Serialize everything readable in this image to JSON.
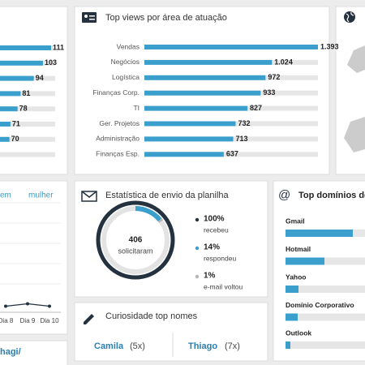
{
  "left_panel": {
    "values": [
      111,
      103,
      94,
      81,
      78,
      71,
      70
    ],
    "xlim": [
      0,
      115
    ]
  },
  "views_panel": {
    "title": "Top views por área de atuação",
    "categories": [
      "Vendas",
      "Negócios",
      "Logística",
      "Finanças Corp.",
      "TI",
      "Ger. Projetos",
      "Administração",
      "Finanças Esp."
    ],
    "values": [
      1393,
      1024,
      972,
      933,
      827,
      732,
      713,
      637
    ],
    "value_labels": [
      "1.393",
      "1.024",
      "972",
      "933",
      "827",
      "732",
      "713",
      "637"
    ],
    "xlim": [
      0,
      1393
    ]
  },
  "gender_panel": {
    "legend": [
      "em",
      "mulher"
    ],
    "categories": [
      "Dia 8",
      "Dia 9",
      "Dia 10"
    ],
    "values": [
      5,
      7,
      5
    ],
    "ylim": [
      0,
      100
    ],
    "footer": "hagi/"
  },
  "stats_panel": {
    "title": "Estatística de envio da planilha",
    "center_value": 406,
    "center_label": "solicitaram",
    "items": [
      {
        "value": 100,
        "value_label": "100%",
        "label": "recebeu",
        "color": "#24313f"
      },
      {
        "value": 14,
        "value_label": "14%",
        "label": "respondeu",
        "color": "#3a9fcc"
      },
      {
        "value": 1,
        "value_label": "1%",
        "label": "e-mail voltou",
        "color": "#b5b5b5"
      }
    ]
  },
  "names_panel": {
    "title": "Curiosidade top nomes",
    "names": [
      {
        "name": "Camila",
        "count_label": "(5x)"
      },
      {
        "name": "Thiago",
        "count_label": "(7x)"
      }
    ]
  },
  "domains_panel": {
    "title": "Top domínios de",
    "categories": [
      "Gmail",
      "Hotmail",
      "Yahoo",
      "Domínio Corporativo",
      "Outlook"
    ],
    "values": [
      83,
      48,
      16,
      15,
      6
    ],
    "xlim": [
      0,
      100
    ]
  }
}
